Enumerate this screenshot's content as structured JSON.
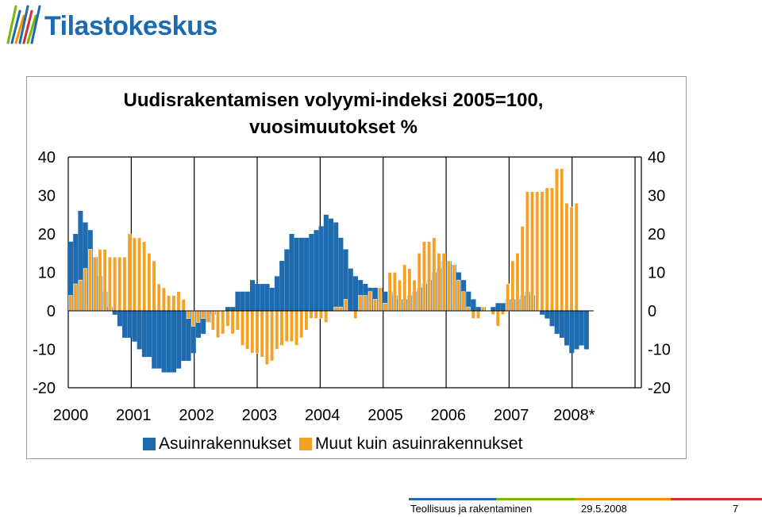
{
  "brand": {
    "name": "Tilastokeskus",
    "color": "#1b6bb3",
    "accent_green": "#7ab800",
    "accent_orange": "#f39200"
  },
  "chart_data": {
    "type": "bar",
    "title": "Uudisrakentamisen volyymi-indeksi 2005=100,",
    "subtitle": "vuosimuutokset %",
    "xlabel": "",
    "ylabel": "",
    "ylim": [
      -20,
      40
    ],
    "y_ticks": [
      "40",
      "30",
      "20",
      "10",
      "0",
      "-10",
      "-20"
    ],
    "x_tick_labels": [
      "2000",
      "2001",
      "2002",
      "2003",
      "2004",
      "2005",
      "2006",
      "2007",
      "2008*"
    ],
    "grid": true,
    "legend_position": "bottom",
    "colors": [
      "#1f6bb0",
      "#f5a124"
    ],
    "series": [
      {
        "name": "Asuinrakennukset",
        "values": [
          18,
          20,
          26,
          23,
          21,
          14,
          9,
          5,
          1,
          -1,
          -4,
          -7,
          -7,
          -8,
          -10,
          -12,
          -12,
          -15,
          -15,
          -16,
          -16,
          -16,
          -15,
          -13,
          -13,
          -11,
          -7,
          -6,
          -3,
          -1,
          0,
          0,
          1,
          1,
          5,
          5,
          5,
          8,
          7,
          7,
          7,
          6,
          9,
          13,
          16,
          20,
          19,
          19,
          19,
          20,
          21,
          22,
          25,
          24,
          23,
          19,
          16,
          11,
          9,
          8,
          7,
          6,
          6,
          6,
          5,
          5,
          4,
          3,
          3,
          4,
          5,
          6,
          7,
          8,
          10,
          11,
          13,
          13,
          12,
          10,
          8,
          5,
          3,
          1,
          1,
          0,
          1,
          2,
          2,
          3,
          3,
          3,
          4,
          5,
          4,
          0,
          -1,
          -2,
          -4,
          -6,
          -7,
          -9,
          -11,
          -10,
          -9,
          -10
        ]
      },
      {
        "name": "Muut kuin asuinrakennukset",
        "values": [
          4,
          7,
          8,
          11,
          16,
          14,
          16,
          16,
          14,
          14,
          14,
          14,
          20,
          19,
          19,
          18,
          15,
          13,
          7,
          6,
          4,
          4,
          5,
          3,
          -2,
          -4,
          -3,
          -2,
          -3,
          -5,
          -7,
          -6,
          -4,
          -6,
          -5,
          -9,
          -10,
          -11,
          -11,
          -12,
          -14,
          -13,
          -10,
          -9,
          -8,
          -8,
          -9,
          -7,
          -5,
          -2,
          -2,
          -2,
          -3,
          0,
          1,
          1,
          3,
          0,
          -2,
          4,
          4,
          5,
          3,
          6,
          2,
          10,
          10,
          8,
          12,
          11,
          8,
          15,
          18,
          18,
          19,
          15,
          15,
          13,
          12,
          8,
          5,
          1,
          -2,
          -2,
          1,
          0,
          -1,
          -4,
          -1,
          7,
          13,
          15,
          22,
          31,
          31,
          31,
          31,
          32,
          32,
          37,
          37,
          28,
          27,
          28
        ]
      }
    ]
  },
  "footer": {
    "section": "Teollisuus ja rakentaminen",
    "date": "29.5.2008",
    "page": "7"
  }
}
